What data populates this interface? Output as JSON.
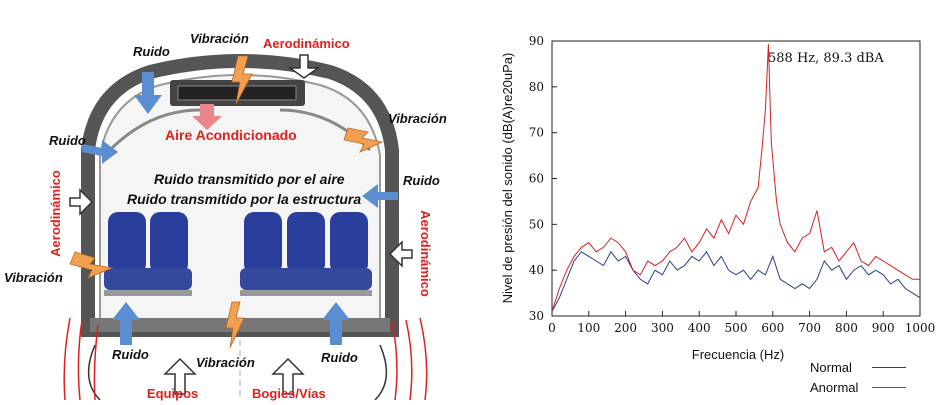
{
  "diagram": {
    "labels": {
      "ruido_top": "Ruido",
      "vibracion_top": "Vibración",
      "aero_top": "Aerodinámico",
      "ruido_left": "Ruido",
      "vibracion_right": "Vibración",
      "aire": "Aire Acondicionado",
      "ruido_right": "Ruido",
      "aero_left": "Aerodinámico",
      "aero_right": "Aerodinámico",
      "vibracion_left": "Vibración",
      "center_line1": "Ruido transmitido por el aire",
      "center_line2": "Ruido transmitido por la estructura",
      "ruido_bottom_left": "Ruido",
      "vibracion_bottom": "Vibración",
      "ruido_bottom_right": "Ruido",
      "equipos": "Equipos",
      "bogies": "Bogies/Vías"
    },
    "colors": {
      "seat": "#2a3e9c",
      "shell": "#7a7a7a",
      "blue_arrow": "#5b8ed0",
      "orange": "#f0a050",
      "red": "#e0201c",
      "pink_arrow": "#e8868a"
    }
  },
  "chart_data": {
    "type": "line",
    "xlabel": "Frecuencia (Hz)",
    "ylabel": "Nivel de presión del sonido (dB(A)re20uPa)",
    "xlim": [
      0,
      1000
    ],
    "ylim": [
      30,
      90
    ],
    "xticks": [
      0,
      100,
      200,
      300,
      400,
      500,
      600,
      700,
      800,
      900,
      1000
    ],
    "yticks": [
      30,
      40,
      50,
      60,
      70,
      80,
      90
    ],
    "annotation": "588 Hz, 89.3 dBA",
    "legend_position": "bottom-right",
    "series": [
      {
        "name": "Normal",
        "color": "#2b3d8f",
        "x": [
          0,
          20,
          40,
          60,
          80,
          100,
          120,
          140,
          160,
          180,
          200,
          220,
          240,
          260,
          280,
          300,
          320,
          340,
          360,
          380,
          400,
          420,
          440,
          460,
          480,
          500,
          520,
          540,
          560,
          580,
          600,
          620,
          640,
          660,
          680,
          700,
          720,
          740,
          760,
          780,
          800,
          820,
          840,
          860,
          880,
          900,
          920,
          940,
          960,
          980,
          1000
        ],
        "values": [
          31,
          34,
          38,
          42,
          44,
          43,
          42,
          41,
          44,
          42,
          43,
          40,
          38,
          37,
          40,
          39,
          42,
          40,
          41,
          43,
          42,
          44,
          41,
          43,
          40,
          39,
          40,
          38,
          40,
          39,
          43,
          38,
          37,
          36,
          37,
          36,
          38,
          42,
          40,
          41,
          38,
          40,
          41,
          39,
          40,
          39,
          37,
          38,
          36,
          35,
          34
        ]
      },
      {
        "name": "Anormal",
        "color": "#d42020",
        "x": [
          0,
          20,
          40,
          60,
          80,
          100,
          120,
          140,
          160,
          180,
          200,
          220,
          240,
          260,
          280,
          300,
          320,
          340,
          360,
          380,
          400,
          420,
          440,
          460,
          480,
          500,
          520,
          540,
          560,
          570,
          580,
          588,
          596,
          610,
          620,
          640,
          660,
          680,
          700,
          720,
          740,
          760,
          780,
          800,
          820,
          840,
          860,
          880,
          900,
          920,
          940,
          960,
          980,
          1000
        ],
        "values": [
          31,
          36,
          40,
          43,
          45,
          46,
          44,
          45,
          47,
          46,
          44,
          40,
          39,
          42,
          41,
          42,
          44,
          45,
          47,
          44,
          46,
          49,
          47,
          51,
          48,
          52,
          50,
          55,
          58,
          66,
          75,
          89.3,
          68,
          55,
          50,
          46,
          44,
          47,
          48,
          53,
          44,
          45,
          42,
          44,
          46,
          42,
          41,
          43,
          42,
          41,
          40,
          39,
          38,
          38
        ]
      }
    ]
  }
}
